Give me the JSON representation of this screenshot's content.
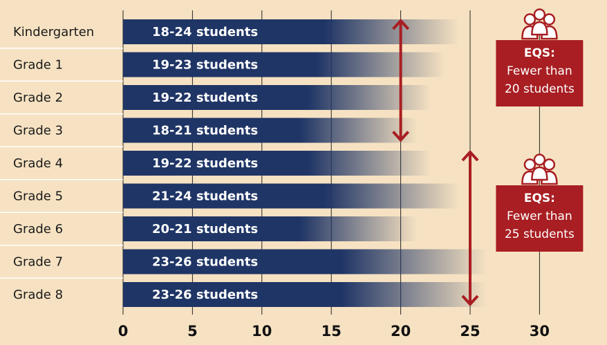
{
  "chart_data": {
    "type": "bar",
    "orientation": "horizontal",
    "categories": [
      "Kindergarten",
      "Grade 1",
      "Grade 2",
      "Grade 3",
      "Grade 4",
      "Grade 5",
      "Grade 6",
      "Grade 7",
      "Grade 8"
    ],
    "ranges": [
      [
        18,
        24
      ],
      [
        19,
        23
      ],
      [
        19,
        22
      ],
      [
        18,
        21
      ],
      [
        19,
        22
      ],
      [
        21,
        24
      ],
      [
        20,
        21
      ],
      [
        23,
        26
      ],
      [
        23,
        26
      ]
    ],
    "bar_labels": [
      "18-24 students",
      "19-23 students",
      "19-22 students",
      "18-21 students",
      "19-22 students",
      "21-24 students",
      "20-21 students",
      "23-26 students",
      "23-26 students"
    ],
    "xlim": [
      0,
      30
    ],
    "xticks": [
      0,
      5,
      10,
      15,
      20,
      25,
      30
    ],
    "xlabel": "",
    "ylabel": "",
    "title": "",
    "grid": true,
    "standards": [
      {
        "label": "EQS:",
        "text": [
          "Fewer than",
          "20 students"
        ],
        "value": 20,
        "from": "Kindergarten",
        "to": "Grade 3"
      },
      {
        "label": "EQS:",
        "text": [
          "Fewer than",
          "25 students"
        ],
        "value": 25,
        "from": "Grade 4",
        "to": "Grade 8"
      }
    ],
    "colors": {
      "background": "#f6e2c2",
      "bar": "#1f3566",
      "accent": "#a81e22",
      "grid": "#222222"
    }
  }
}
